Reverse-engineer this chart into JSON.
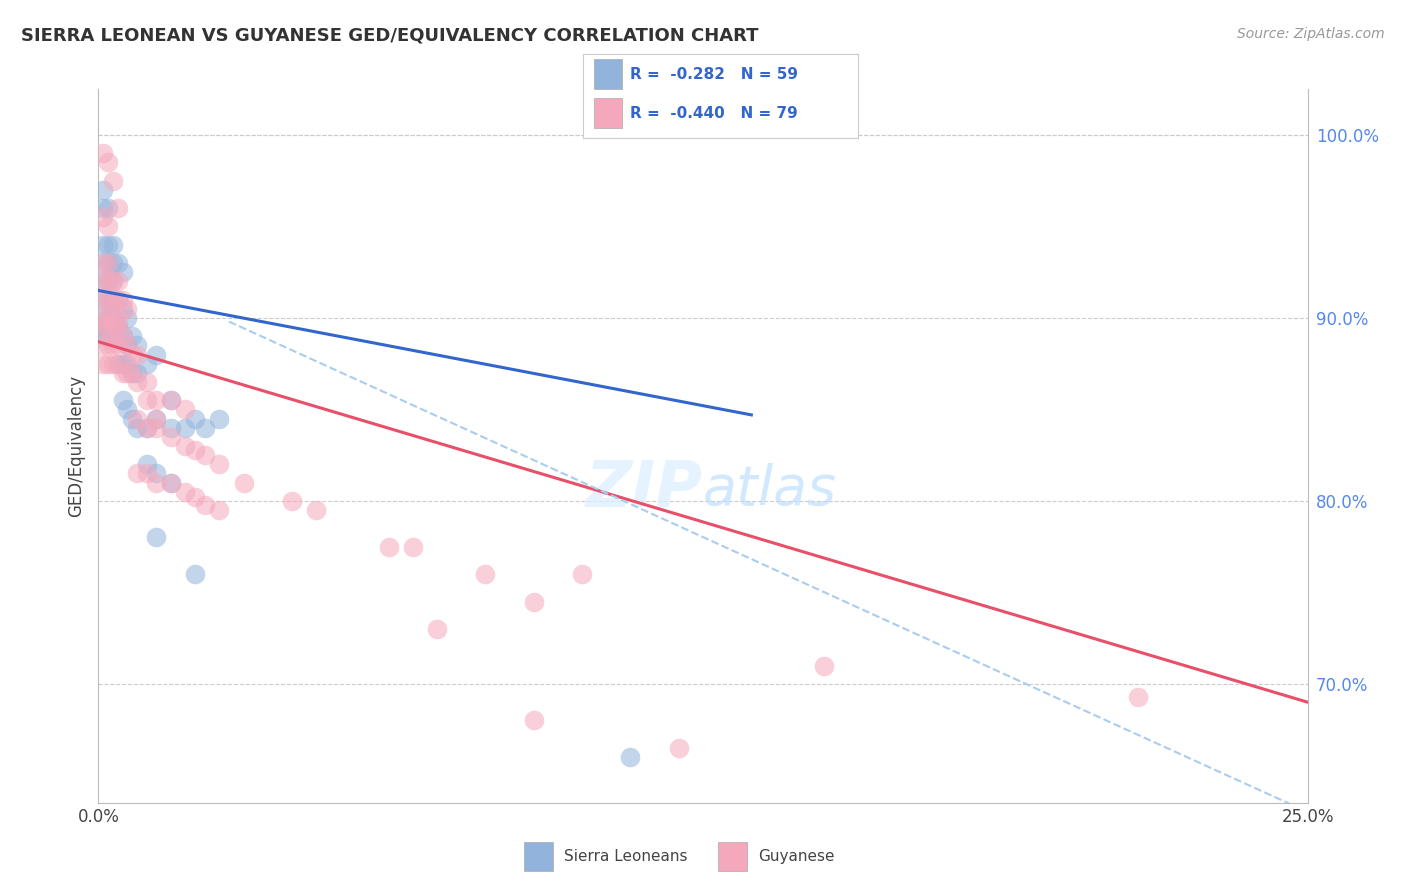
{
  "title": "SIERRA LEONEAN VS GUYANESE GED/EQUIVALENCY CORRELATION CHART",
  "source": "Source: ZipAtlas.com",
  "ylabel": "GED/Equivalency",
  "xmin": 0.0,
  "xmax": 0.25,
  "ymin": 0.635,
  "ymax": 1.025,
  "blue_color": "#92B4DC",
  "pink_color": "#F5A8BC",
  "blue_line_color": "#3366CC",
  "pink_line_color": "#E8506A",
  "dashed_line_color": "#AACCEE",
  "legend_text_color": "#3366CC",
  "background_color": "#FFFFFF",
  "grid_color": "#CCCCCC",
  "blue_scatter": [
    [
      0.001,
      0.97
    ],
    [
      0.001,
      0.96
    ],
    [
      0.002,
      0.96
    ],
    [
      0.001,
      0.94
    ],
    [
      0.002,
      0.94
    ],
    [
      0.003,
      0.94
    ],
    [
      0.001,
      0.93
    ],
    [
      0.002,
      0.93
    ],
    [
      0.003,
      0.93
    ],
    [
      0.001,
      0.92
    ],
    [
      0.002,
      0.92
    ],
    [
      0.003,
      0.92
    ],
    [
      0.001,
      0.91
    ],
    [
      0.002,
      0.91
    ],
    [
      0.003,
      0.91
    ],
    [
      0.001,
      0.9
    ],
    [
      0.002,
      0.9
    ],
    [
      0.003,
      0.9
    ],
    [
      0.001,
      0.895
    ],
    [
      0.002,
      0.895
    ],
    [
      0.003,
      0.895
    ],
    [
      0.001,
      0.89
    ],
    [
      0.002,
      0.89
    ],
    [
      0.003,
      0.89
    ],
    [
      0.004,
      0.93
    ],
    [
      0.005,
      0.925
    ],
    [
      0.004,
      0.91
    ],
    [
      0.005,
      0.905
    ],
    [
      0.006,
      0.9
    ],
    [
      0.004,
      0.895
    ],
    [
      0.005,
      0.89
    ],
    [
      0.006,
      0.885
    ],
    [
      0.007,
      0.89
    ],
    [
      0.008,
      0.885
    ],
    [
      0.004,
      0.875
    ],
    [
      0.005,
      0.875
    ],
    [
      0.006,
      0.875
    ],
    [
      0.007,
      0.87
    ],
    [
      0.008,
      0.87
    ],
    [
      0.01,
      0.875
    ],
    [
      0.012,
      0.88
    ],
    [
      0.005,
      0.855
    ],
    [
      0.006,
      0.85
    ],
    [
      0.007,
      0.845
    ],
    [
      0.008,
      0.84
    ],
    [
      0.01,
      0.84
    ],
    [
      0.012,
      0.845
    ],
    [
      0.015,
      0.855
    ],
    [
      0.015,
      0.84
    ],
    [
      0.018,
      0.84
    ],
    [
      0.02,
      0.845
    ],
    [
      0.022,
      0.84
    ],
    [
      0.025,
      0.845
    ],
    [
      0.01,
      0.82
    ],
    [
      0.012,
      0.815
    ],
    [
      0.015,
      0.81
    ],
    [
      0.012,
      0.78
    ],
    [
      0.02,
      0.76
    ],
    [
      0.11,
      0.66
    ]
  ],
  "pink_scatter": [
    [
      0.001,
      0.99
    ],
    [
      0.002,
      0.985
    ],
    [
      0.003,
      0.975
    ],
    [
      0.004,
      0.96
    ],
    [
      0.001,
      0.955
    ],
    [
      0.002,
      0.95
    ],
    [
      0.001,
      0.93
    ],
    [
      0.002,
      0.93
    ],
    [
      0.001,
      0.92
    ],
    [
      0.002,
      0.92
    ],
    [
      0.003,
      0.92
    ],
    [
      0.004,
      0.92
    ],
    [
      0.001,
      0.91
    ],
    [
      0.002,
      0.91
    ],
    [
      0.003,
      0.91
    ],
    [
      0.004,
      0.91
    ],
    [
      0.001,
      0.9
    ],
    [
      0.002,
      0.9
    ],
    [
      0.003,
      0.9
    ],
    [
      0.004,
      0.9
    ],
    [
      0.001,
      0.895
    ],
    [
      0.002,
      0.895
    ],
    [
      0.003,
      0.895
    ],
    [
      0.004,
      0.895
    ],
    [
      0.001,
      0.885
    ],
    [
      0.002,
      0.885
    ],
    [
      0.003,
      0.885
    ],
    [
      0.004,
      0.885
    ],
    [
      0.001,
      0.875
    ],
    [
      0.002,
      0.875
    ],
    [
      0.003,
      0.875
    ],
    [
      0.004,
      0.875
    ],
    [
      0.005,
      0.91
    ],
    [
      0.006,
      0.905
    ],
    [
      0.005,
      0.89
    ],
    [
      0.006,
      0.885
    ],
    [
      0.007,
      0.88
    ],
    [
      0.008,
      0.88
    ],
    [
      0.005,
      0.87
    ],
    [
      0.006,
      0.87
    ],
    [
      0.007,
      0.87
    ],
    [
      0.008,
      0.865
    ],
    [
      0.01,
      0.865
    ],
    [
      0.012,
      0.855
    ],
    [
      0.01,
      0.855
    ],
    [
      0.012,
      0.845
    ],
    [
      0.015,
      0.855
    ],
    [
      0.018,
      0.85
    ],
    [
      0.008,
      0.845
    ],
    [
      0.01,
      0.84
    ],
    [
      0.012,
      0.84
    ],
    [
      0.015,
      0.835
    ],
    [
      0.018,
      0.83
    ],
    [
      0.02,
      0.828
    ],
    [
      0.022,
      0.825
    ],
    [
      0.025,
      0.82
    ],
    [
      0.008,
      0.815
    ],
    [
      0.01,
      0.815
    ],
    [
      0.012,
      0.81
    ],
    [
      0.015,
      0.81
    ],
    [
      0.018,
      0.805
    ],
    [
      0.02,
      0.802
    ],
    [
      0.022,
      0.798
    ],
    [
      0.025,
      0.795
    ],
    [
      0.03,
      0.81
    ],
    [
      0.04,
      0.8
    ],
    [
      0.045,
      0.795
    ],
    [
      0.06,
      0.775
    ],
    [
      0.065,
      0.775
    ],
    [
      0.08,
      0.76
    ],
    [
      0.1,
      0.76
    ],
    [
      0.07,
      0.73
    ],
    [
      0.09,
      0.745
    ],
    [
      0.15,
      0.71
    ],
    [
      0.09,
      0.68
    ],
    [
      0.12,
      0.665
    ],
    [
      0.215,
      0.693
    ]
  ],
  "blue_line_x": [
    0.0,
    0.135
  ],
  "blue_line_y": [
    0.915,
    0.847
  ],
  "pink_line_x": [
    0.0,
    0.25
  ],
  "pink_line_y": [
    0.887,
    0.69
  ],
  "dashed_line_x": [
    0.027,
    0.25
  ],
  "dashed_line_y": [
    0.898,
    0.63
  ],
  "ytick_positions": [
    0.7,
    0.8,
    0.9,
    1.0
  ],
  "ytick_labels": [
    "70.0%",
    "80.0%",
    "90.0%",
    "100.0%"
  ]
}
